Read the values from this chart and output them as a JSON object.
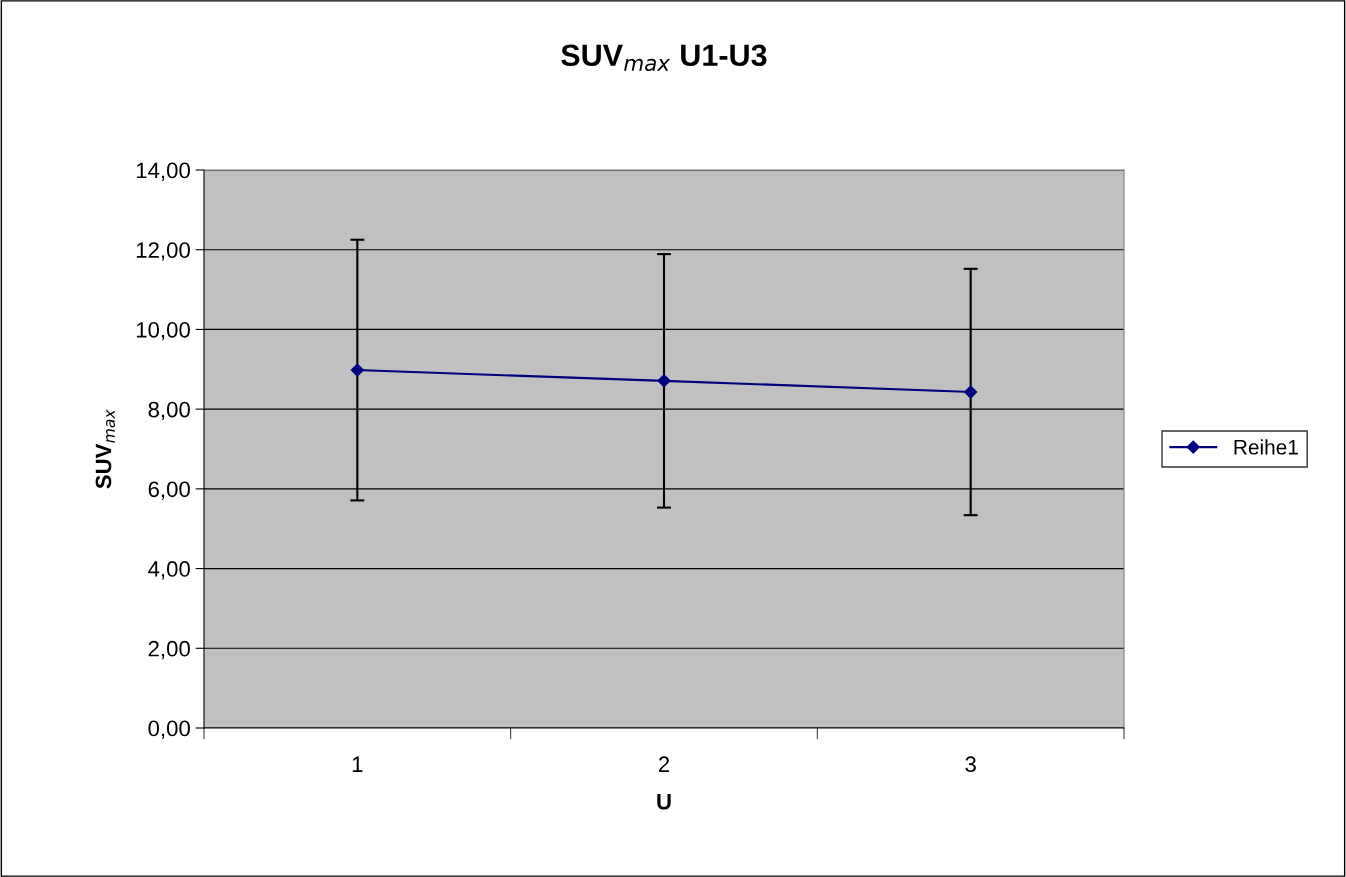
{
  "chart_data": {
    "type": "line",
    "title": "SUV$_{max}$ U1-U3",
    "xlabel": "U",
    "ylabel": "SUV$_{max}$",
    "categories": [
      "1",
      "2",
      "3"
    ],
    "series": [
      {
        "name": "Reihe1",
        "color": "#000080",
        "values": [
          8.98,
          8.71,
          8.43
        ],
        "errors": [
          3.27,
          3.18,
          3.09
        ]
      }
    ],
    "ylim": [
      0,
      14
    ],
    "yticks": [
      {
        "value": 0,
        "label": "0,00"
      },
      {
        "value": 2,
        "label": "2,00"
      },
      {
        "value": 4,
        "label": "4,00"
      },
      {
        "value": 6,
        "label": "6,00"
      },
      {
        "value": 8,
        "label": "8,00"
      },
      {
        "value": 10,
        "label": "10,00"
      },
      {
        "value": 12,
        "label": "12,00"
      },
      {
        "value": 14,
        "label": "14,00"
      }
    ],
    "grid": "y",
    "legend": "right",
    "marker": "diamond",
    "line_style": "solid"
  }
}
